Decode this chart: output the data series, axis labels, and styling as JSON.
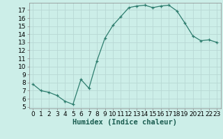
{
  "title": "",
  "xlabel": "Humidex (Indice chaleur)",
  "x_values": [
    0,
    1,
    2,
    3,
    4,
    5,
    6,
    7,
    8,
    9,
    10,
    11,
    12,
    13,
    14,
    15,
    16,
    17,
    18,
    19,
    20,
    21,
    22,
    23
  ],
  "y_values": [
    7.8,
    7.0,
    6.8,
    6.4,
    5.7,
    5.3,
    8.4,
    7.3,
    10.7,
    13.5,
    15.1,
    16.2,
    17.3,
    17.5,
    17.6,
    17.3,
    17.5,
    17.6,
    16.9,
    15.4,
    13.8,
    13.2,
    13.3,
    13.0
  ],
  "ylim": [
    4.8,
    17.9
  ],
  "xlim": [
    -0.5,
    23.5
  ],
  "yticks": [
    5,
    6,
    7,
    8,
    9,
    10,
    11,
    12,
    13,
    14,
    15,
    16,
    17
  ],
  "xticks": [
    0,
    1,
    2,
    3,
    4,
    5,
    6,
    7,
    8,
    9,
    10,
    11,
    12,
    13,
    14,
    15,
    16,
    17,
    18,
    19,
    20,
    21,
    22,
    23
  ],
  "line_color": "#2e7d6e",
  "marker": "+",
  "bg_color": "#cceee8",
  "grid_color": "#b8d8d4",
  "tick_label_fontsize": 6.5,
  "xlabel_fontsize": 7.5
}
